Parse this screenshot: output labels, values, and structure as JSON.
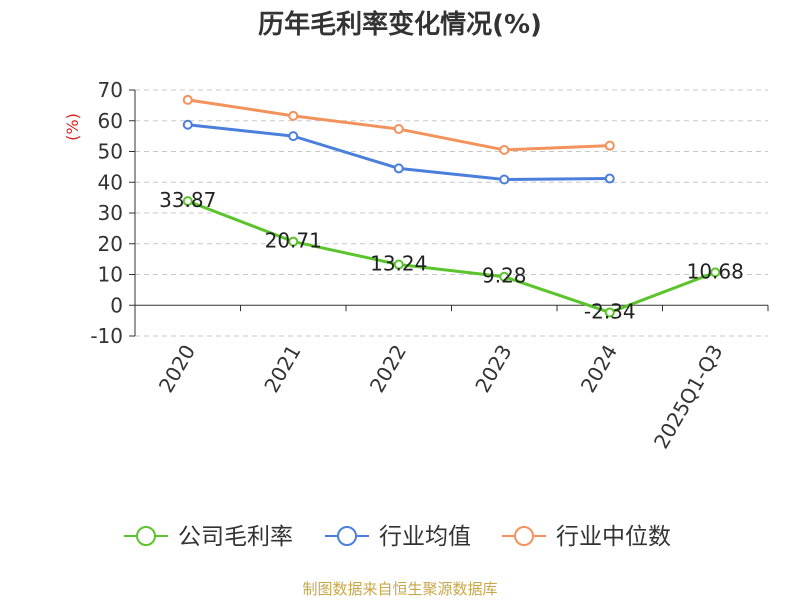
{
  "chart_data": {
    "type": "line",
    "title": "历年毛利率变化情况(%)",
    "ylabel": "(%)",
    "xlabel": "",
    "categories": [
      "2020",
      "2021",
      "2022",
      "2023",
      "2024",
      "2025Q1-Q3"
    ],
    "ylim": [
      -10,
      70
    ],
    "yticks": [
      70,
      60,
      50,
      40,
      30,
      20,
      10,
      0,
      -10
    ],
    "grid": true,
    "legend_position": "bottom",
    "series": [
      {
        "name": "公司毛利率",
        "color": "#5bc42c",
        "values": [
          33.87,
          20.71,
          13.24,
          9.28,
          -2.34,
          10.68
        ],
        "labels": [
          "33.87",
          "20.71",
          "13.24",
          "9.28",
          "-2.34",
          "10.68"
        ]
      },
      {
        "name": "行业均值",
        "color": "#4a7fdc",
        "values": [
          58.7,
          55.0,
          44.5,
          40.9,
          41.2,
          null
        ]
      },
      {
        "name": "行业中位数",
        "color": "#f4925c",
        "values": [
          66.8,
          61.6,
          57.3,
          50.5,
          51.9,
          null
        ]
      }
    ]
  },
  "footer": {
    "source": "制图数据来自恒生聚源数据库"
  }
}
